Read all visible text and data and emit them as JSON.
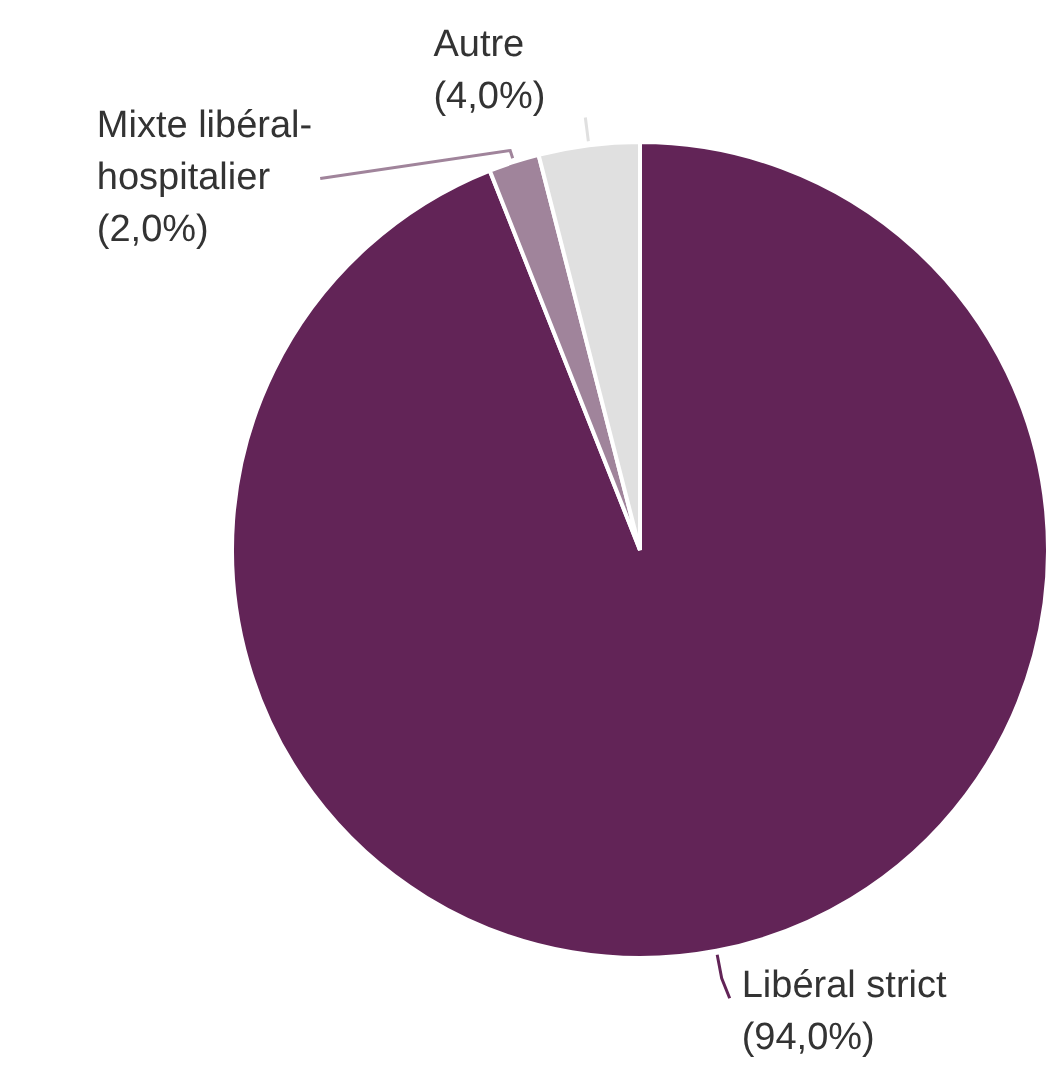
{
  "chart_data": {
    "type": "pie",
    "categories": [
      "Libéral strict",
      "Mixte libéral-hospitalier",
      "Autre"
    ],
    "values": [
      94.0,
      2.0,
      4.0
    ],
    "colors": [
      "#622457",
      "#a0849b",
      "#e0e0e0"
    ],
    "value_labels": [
      "(94,0%)",
      "(2,0%)",
      "(4,0%)"
    ],
    "legend": false
  }
}
